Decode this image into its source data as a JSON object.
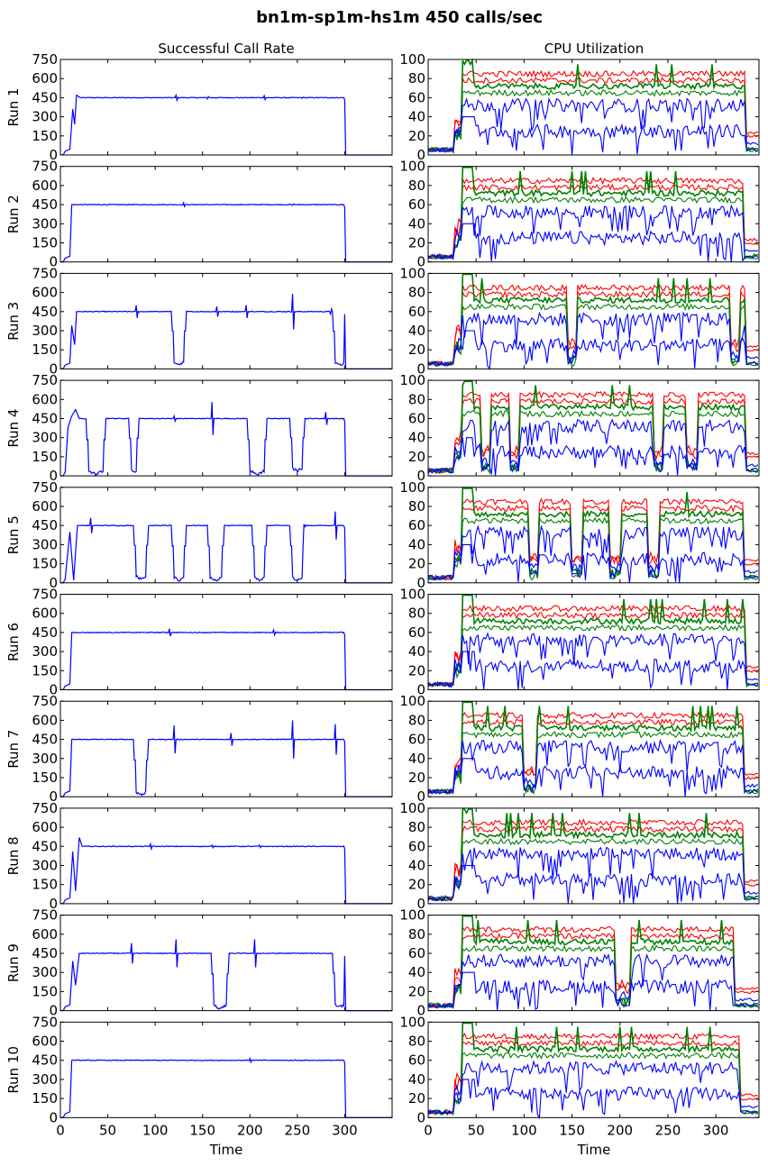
{
  "figure": {
    "title": "bn1m-sp1m-hs1m 450 calls/sec",
    "left_column_title": "Successful Call Rate",
    "right_column_title": "CPU Utilization",
    "xlabel": "Time"
  },
  "chart_data": [
    {
      "type": "line",
      "panel": "Successful Call Rate",
      "ylabels": [
        "Run 1",
        "Run 2",
        "Run 3",
        "Run 4",
        "Run 5",
        "Run 6",
        "Run 7",
        "Run 8",
        "Run 9",
        "Run 10"
      ],
      "xlim": [
        0,
        350
      ],
      "ylim": [
        0,
        750
      ],
      "xticks": [
        0,
        50,
        100,
        150,
        200,
        250,
        300
      ],
      "yticks": [
        0,
        150,
        300,
        450,
        600,
        750
      ],
      "series_color": "#0000ff",
      "level": 450,
      "runs": [
        {
          "label": "Run 1",
          "end": 300,
          "ramp": [
            [
              5,
              30
            ],
            [
              10,
              45
            ],
            [
              13,
              360
            ],
            [
              15,
              240
            ],
            [
              17,
              470
            ],
            [
              20,
              455
            ]
          ],
          "drops": [],
          "spikes": [
            [
              122,
              470
            ],
            [
              155,
              440
            ],
            [
              215,
              465
            ],
            [
              255,
              445
            ]
          ]
        },
        {
          "label": "Run 2",
          "end": 300,
          "ramp": [
            [
              5,
              30
            ],
            [
              10,
              45
            ],
            [
              12,
              450
            ]
          ],
          "drops": [],
          "spikes": [
            [
              130,
              465
            ],
            [
              245,
              445
            ]
          ]
        },
        {
          "label": "Run 3",
          "end": 300,
          "ramp": [
            [
              5,
              30
            ],
            [
              10,
              45
            ],
            [
              12,
              340
            ],
            [
              15,
              190
            ],
            [
              17,
              450
            ]
          ],
          "drops": [
            [
              120,
              130,
              25
            ],
            [
              290,
              300,
              20
            ]
          ],
          "spikes": [
            [
              80,
              500
            ],
            [
              165,
              490
            ],
            [
              196,
              500
            ],
            [
              245,
              590
            ],
            [
              285,
              430
            ]
          ]
        },
        {
          "label": "Run 4",
          "end": 300,
          "ramp": [
            [
              5,
              30
            ],
            [
              8,
              380
            ],
            [
              12,
              470
            ],
            [
              16,
              520
            ],
            [
              20,
              450
            ]
          ],
          "drops": [
            [
              30,
              45,
              0
            ],
            [
              75,
              80,
              20
            ],
            [
              200,
              215,
              0
            ],
            [
              245,
              255,
              30
            ]
          ],
          "spikes": [
            [
              120,
              470
            ],
            [
              160,
              580
            ],
            [
              280,
              500
            ]
          ]
        },
        {
          "label": "Run 5",
          "end": 300,
          "ramp": [
            [
              5,
              30
            ],
            [
              10,
              400
            ],
            [
              14,
              20
            ],
            [
              18,
              450
            ],
            [
              22,
              450
            ]
          ],
          "drops": [
            [
              80,
              90,
              20
            ],
            [
              120,
              130,
              10
            ],
            [
              158,
              170,
              10
            ],
            [
              205,
              215,
              10
            ],
            [
              245,
              255,
              10
            ]
          ],
          "spikes": [
            [
              32,
              510
            ],
            [
              257,
              460
            ],
            [
              290,
              560
            ]
          ]
        },
        {
          "label": "Run 6",
          "end": 300,
          "ramp": [
            [
              5,
              30
            ],
            [
              10,
              45
            ],
            [
              12,
              450
            ]
          ],
          "drops": [],
          "spikes": [
            [
              115,
              480
            ],
            [
              225,
              470
            ]
          ]
        },
        {
          "label": "Run 7",
          "end": 300,
          "ramp": [
            [
              5,
              30
            ],
            [
              10,
              45
            ],
            [
              12,
              450
            ]
          ],
          "drops": [
            [
              80,
              90,
              5
            ]
          ],
          "spikes": [
            [
              120,
              560
            ],
            [
              180,
              500
            ],
            [
              245,
              600
            ],
            [
              290,
              570
            ]
          ]
        },
        {
          "label": "Run 8",
          "end": 300,
          "ramp": [
            [
              5,
              30
            ],
            [
              10,
              45
            ],
            [
              13,
              410
            ],
            [
              16,
              100
            ],
            [
              20,
              520
            ],
            [
              23,
              450
            ]
          ],
          "drops": [],
          "spikes": [
            [
              95,
              470
            ],
            [
              160,
              460
            ],
            [
              210,
              460
            ]
          ]
        },
        {
          "label": "Run 9",
          "end": 300,
          "ramp": [
            [
              5,
              30
            ],
            [
              10,
              45
            ],
            [
              13,
              390
            ],
            [
              16,
              200
            ],
            [
              20,
              450
            ]
          ],
          "drops": [
            [
              162,
              175,
              5
            ],
            [
              290,
              300,
              20
            ]
          ],
          "spikes": [
            [
              75,
              530
            ],
            [
              122,
              560
            ],
            [
              205,
              560
            ]
          ]
        },
        {
          "label": "Run 10",
          "end": 300,
          "ramp": [
            [
              5,
              30
            ],
            [
              10,
              45
            ],
            [
              12,
              450
            ]
          ],
          "drops": [],
          "spikes": [
            [
              200,
              465
            ]
          ]
        }
      ]
    },
    {
      "type": "line",
      "panel": "CPU Utilization",
      "ylabels": [
        "Run 1",
        "Run 2",
        "Run 3",
        "Run 4",
        "Run 5",
        "Run 6",
        "Run 7",
        "Run 8",
        "Run 9",
        "Run 10"
      ],
      "xlim": [
        0,
        345
      ],
      "ylim": [
        0,
        100
      ],
      "xticks": [
        0,
        50,
        100,
        150,
        200,
        250,
        300
      ],
      "yticks": [
        0,
        20,
        40,
        60,
        80,
        100
      ],
      "series": [
        {
          "color": "#ff0000",
          "level": 85,
          "idle": 22
        },
        {
          "color": "#ff0000",
          "level": 78,
          "idle": 18
        },
        {
          "color": "#008000",
          "level": 72,
          "idle": 5
        },
        {
          "color": "#008000",
          "level": 65,
          "idle": 3
        },
        {
          "color": "#0000ff",
          "level": 52,
          "idle": 10
        },
        {
          "color": "#0000ff",
          "level": 25,
          "idle": 4
        }
      ],
      "runs": [
        {
          "label": "Run 1",
          "start": 35,
          "end": 330,
          "dips": []
        },
        {
          "label": "Run 2",
          "start": 35,
          "end": 328,
          "dips": []
        },
        {
          "label": "Run 3",
          "start": 35,
          "end": 330,
          "dips": [
            [
              145,
              155
            ],
            [
              315,
              325
            ]
          ]
        },
        {
          "label": "Run 4",
          "start": 35,
          "end": 330,
          "dips": [
            [
              55,
              65
            ],
            [
              85,
              95
            ],
            [
              235,
              245
            ],
            [
              270,
              280
            ]
          ]
        },
        {
          "label": "Run 5",
          "start": 35,
          "end": 328,
          "dips": [
            [
              105,
              115
            ],
            [
              150,
              160
            ],
            [
              190,
              200
            ],
            [
              230,
              240
            ]
          ]
        },
        {
          "label": "Run 6",
          "start": 35,
          "end": 330,
          "dips": []
        },
        {
          "label": "Run 7",
          "start": 35,
          "end": 328,
          "dips": [
            [
              100,
              112
            ]
          ]
        },
        {
          "label": "Run 8",
          "start": 35,
          "end": 328,
          "dips": []
        },
        {
          "label": "Run 9",
          "start": 35,
          "end": 318,
          "dips": [
            [
              195,
              210
            ]
          ]
        },
        {
          "label": "Run 10",
          "start": 35,
          "end": 325,
          "dips": []
        }
      ]
    }
  ]
}
